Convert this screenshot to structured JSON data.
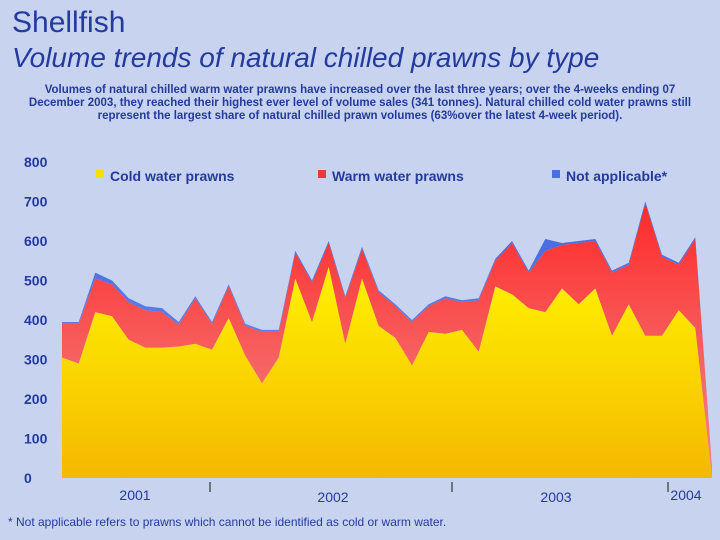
{
  "header": {
    "title": "Shellfish",
    "subtitle": "Volume trends of natural chilled prawns by type",
    "description": "Volumes of natural chilled warm water prawns have increased over the last three years; over the 4-weeks ending 07 December 2003, they reached their highest ever level of volume sales (341 tonnes). Natural chilled cold water prawns still represent the largest share of natural chilled prawn volumes (63%over the latest 4-week period)."
  },
  "footnote": "* Not applicable refers to prawns which cannot be identified as cold or warm water.",
  "colors": {
    "cold": "#f2e400",
    "warm": "#f03838",
    "na": "#4a6fe0",
    "text": "#243a9c"
  },
  "chart_data": {
    "type": "area",
    "stacked": true,
    "ylim": [
      0,
      800
    ],
    "yticks": [
      "0",
      "100",
      "200",
      "300",
      "400",
      "500",
      "600",
      "700",
      "800"
    ],
    "year_labels": [
      "2001",
      "2002",
      "2003",
      "2004"
    ],
    "series": [
      {
        "name": "Cold water prawns",
        "values": [
          305,
          290,
          420,
          410,
          350,
          330,
          330,
          333,
          340,
          325,
          405,
          310,
          240,
          305,
          505,
          395,
          535,
          340,
          505,
          385,
          355,
          285,
          370,
          365,
          375,
          320,
          485,
          465,
          430,
          420,
          480,
          440,
          480,
          360,
          440,
          360,
          360,
          425,
          380,
          0
        ]
      },
      {
        "name": "Warm water prawns",
        "values": [
          85,
          100,
          85,
          80,
          95,
          95,
          90,
          55,
          115,
          65,
          80,
          75,
          130,
          65,
          65,
          100,
          60,
          115,
          75,
          85,
          80,
          110,
          65,
          90,
          70,
          130,
          65,
          130,
          90,
          155,
          110,
          155,
          120,
          160,
          100,
          335,
          200,
          115,
          225,
          30
        ]
      },
      {
        "name": "Not applicable*",
        "values": [
          5,
          5,
          15,
          10,
          10,
          10,
          10,
          7,
          5,
          5,
          5,
          5,
          5,
          5,
          5,
          5,
          5,
          5,
          5,
          5,
          5,
          5,
          5,
          5,
          5,
          5,
          5,
          5,
          5,
          30,
          5,
          5,
          5,
          5,
          5,
          5,
          5,
          5,
          5,
          0
        ]
      }
    ]
  }
}
